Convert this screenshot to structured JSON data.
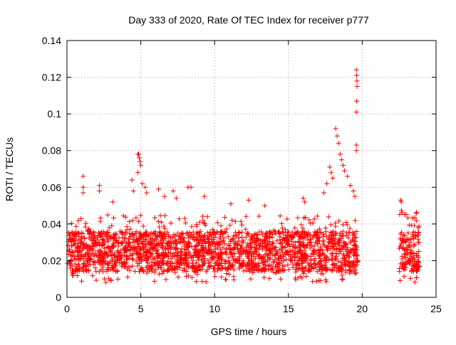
{
  "chart_data": {
    "type": "scatter",
    "title": "Day 333 of 2020, Rate Of TEC Index for receiver p777",
    "xlabel": "GPS time / hours",
    "ylabel": "ROTI / TECUs",
    "xlim": [
      0,
      25
    ],
    "ylim": [
      0,
      0.14
    ],
    "xticks": [
      0,
      5,
      10,
      15,
      20,
      25
    ],
    "yticks": [
      0,
      0.02,
      0.04,
      0.06,
      0.08,
      0.1,
      0.12,
      0.14
    ],
    "ytick_labels": [
      "0",
      "0.02",
      "0.04",
      "0.06",
      "0.08",
      "0.1",
      "0.12",
      "0.14"
    ],
    "grid": true,
    "marker": "+",
    "marker_color": "#ff0000",
    "series": [
      {
        "segments": [
          {
            "x_range": [
              0.0,
              19.7
            ],
            "y_min": 0.008,
            "y_max": 0.045
          },
          {
            "x_range": [
              22.5,
              23.9
            ],
            "y_min": 0.008,
            "y_max": 0.048
          }
        ],
        "notable_points": [
          {
            "x": 1.1,
            "y": 0.066
          },
          {
            "x": 1.1,
            "y": 0.06
          },
          {
            "x": 1.1,
            "y": 0.057
          },
          {
            "x": 2.2,
            "y": 0.061
          },
          {
            "x": 2.2,
            "y": 0.058
          },
          {
            "x": 3.1,
            "y": 0.052
          },
          {
            "x": 4.4,
            "y": 0.064
          },
          {
            "x": 4.5,
            "y": 0.058
          },
          {
            "x": 4.8,
            "y": 0.078
          },
          {
            "x": 4.85,
            "y": 0.078
          },
          {
            "x": 4.9,
            "y": 0.076
          },
          {
            "x": 4.95,
            "y": 0.074
          },
          {
            "x": 5.0,
            "y": 0.072
          },
          {
            "x": 4.8,
            "y": 0.068
          },
          {
            "x": 5.1,
            "y": 0.062
          },
          {
            "x": 5.3,
            "y": 0.06
          },
          {
            "x": 5.4,
            "y": 0.057
          },
          {
            "x": 6.2,
            "y": 0.059
          },
          {
            "x": 6.6,
            "y": 0.055
          },
          {
            "x": 7.2,
            "y": 0.058
          },
          {
            "x": 7.4,
            "y": 0.054
          },
          {
            "x": 8.2,
            "y": 0.06
          },
          {
            "x": 8.4,
            "y": 0.06
          },
          {
            "x": 9.3,
            "y": 0.055
          },
          {
            "x": 11.1,
            "y": 0.051
          },
          {
            "x": 12.3,
            "y": 0.053
          },
          {
            "x": 13.4,
            "y": 0.05
          },
          {
            "x": 16.0,
            "y": 0.054
          },
          {
            "x": 16.1,
            "y": 0.052
          },
          {
            "x": 17.4,
            "y": 0.057
          },
          {
            "x": 17.6,
            "y": 0.062
          },
          {
            "x": 17.8,
            "y": 0.071
          },
          {
            "x": 17.9,
            "y": 0.068
          },
          {
            "x": 18.0,
            "y": 0.065
          },
          {
            "x": 18.2,
            "y": 0.092
          },
          {
            "x": 18.3,
            "y": 0.088
          },
          {
            "x": 18.4,
            "y": 0.084
          },
          {
            "x": 18.5,
            "y": 0.078
          },
          {
            "x": 18.6,
            "y": 0.075
          },
          {
            "x": 18.7,
            "y": 0.072
          },
          {
            "x": 18.8,
            "y": 0.069
          },
          {
            "x": 19.0,
            "y": 0.066
          },
          {
            "x": 19.2,
            "y": 0.061
          },
          {
            "x": 19.4,
            "y": 0.058
          },
          {
            "x": 19.5,
            "y": 0.055
          },
          {
            "x": 19.6,
            "y": 0.124
          },
          {
            "x": 19.62,
            "y": 0.121
          },
          {
            "x": 19.64,
            "y": 0.118
          },
          {
            "x": 19.65,
            "y": 0.115
          },
          {
            "x": 19.62,
            "y": 0.107
          },
          {
            "x": 19.6,
            "y": 0.101
          },
          {
            "x": 19.6,
            "y": 0.083
          },
          {
            "x": 19.6,
            "y": 0.08
          },
          {
            "x": 22.6,
            "y": 0.053
          },
          {
            "x": 22.65,
            "y": 0.052
          }
        ]
      }
    ]
  }
}
